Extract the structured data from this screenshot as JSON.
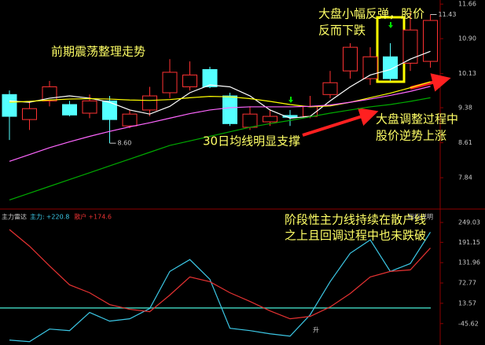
{
  "chart_data": [
    {
      "type": "candlestick",
      "open": [
        9.67,
        9.12,
        9.53,
        9.45,
        9.26,
        9.53,
        8.98,
        9.33,
        9.71,
        9.84,
        10.22,
        9.64,
        8.95,
        9.07,
        9.21,
        9.19,
        9.67,
        10.19,
        10.02,
        10.5,
        10.36,
        10.4
      ],
      "high": [
        9.76,
        9.53,
        9.97,
        9.53,
        9.67,
        9.64,
        9.33,
        9.84,
        10.45,
        10.4,
        10.28,
        9.71,
        9.41,
        9.33,
        9.33,
        9.64,
        10.19,
        10.8,
        10.71,
        10.8,
        11.49,
        11.43
      ],
      "low": [
        8.67,
        8.89,
        9.41,
        9.19,
        9.15,
        8.6,
        8.93,
        9.19,
        9.59,
        9.76,
        9.81,
        8.98,
        8.89,
        8.98,
        8.98,
        9.15,
        9.59,
        10.02,
        9.88,
        9.97,
        10.19,
        10.26
      ],
      "close": [
        9.19,
        9.36,
        9.84,
        9.22,
        9.53,
        9.12,
        9.24,
        9.64,
        10.16,
        10.1,
        9.84,
        9.03,
        9.24,
        9.19,
        9.17,
        9.41,
        9.93,
        10.71,
        10.5,
        10.02,
        11.09,
        11.3
      ],
      "low_labels": [
        null,
        null,
        null,
        null,
        null,
        "8.60",
        null,
        null,
        null,
        null,
        null,
        null,
        null,
        null,
        null,
        null,
        null,
        null,
        null,
        null,
        null,
        null
      ],
      "high_labels": [
        null,
        null,
        null,
        null,
        null,
        null,
        null,
        null,
        null,
        null,
        null,
        null,
        null,
        null,
        null,
        null,
        null,
        null,
        null,
        null,
        null,
        "11.43"
      ],
      "up_color": "#ff3232",
      "down_color": "#54ffff",
      "series": [
        {
          "color": "#ffffff",
          "values": [
            9.53,
            9.5,
            9.59,
            9.64,
            9.59,
            9.5,
            9.33,
            9.24,
            9.41,
            9.71,
            9.88,
            9.84,
            9.64,
            9.33,
            9.15,
            9.19,
            9.53,
            9.84,
            10.1,
            10.22,
            10.45,
            10.62
          ]
        },
        {
          "color": "#ffff00",
          "values": [
            9.5,
            9.52,
            9.55,
            9.57,
            9.58,
            9.57,
            9.55,
            9.54,
            9.56,
            9.6,
            9.63,
            9.62,
            9.58,
            9.52,
            9.45,
            9.4,
            9.42,
            9.5,
            9.6,
            9.7,
            9.82,
            9.95
          ]
        },
        {
          "color": "#ff66ff",
          "values": [
            8.2,
            8.35,
            8.5,
            8.63,
            8.75,
            8.86,
            8.96,
            9.05,
            9.15,
            9.25,
            9.33,
            9.38,
            9.4,
            9.4,
            9.4,
            9.41,
            9.44,
            9.5,
            9.57,
            9.65,
            9.74,
            9.85
          ]
        },
        {
          "color": "#00aa00",
          "values": [
            7.35,
            7.5,
            7.65,
            7.8,
            7.95,
            8.1,
            8.25,
            8.4,
            8.55,
            8.65,
            8.75,
            8.85,
            8.95,
            9.03,
            9.1,
            9.18,
            9.26,
            9.33,
            9.4,
            9.45,
            9.52,
            9.6
          ]
        }
      ],
      "ylim": [
        7.22,
        11.75
      ],
      "yticks": [
        11.66,
        {
          "value": 10.9,
          "label": "10.90"
        },
        10.13,
        9.38,
        8.61,
        7.84
      ],
      "annotations": [
        [
          "前期震荡整理走势"
        ],
        [
          "大盘小幅反弹，股价",
          "反而下跌"
        ],
        [
          "30日均线明显支撑"
        ],
        [
          "大盘调整过程中",
          "股价逆势上涨"
        ]
      ]
    },
    {
      "type": "line",
      "title": "主力雷达",
      "button": "指标说明",
      "series": [
        {
          "name": "主力:",
          "color": "#3cc8e6",
          "values": [
            -93.7,
            -98.3,
            -61.5,
            -66.1,
            -13.2,
            -38.5,
            -31.6,
            -1.7,
            106.4,
            140.9,
            83.4,
            -59.2,
            -66.1,
            -75.3,
            -82.2,
            -20.1,
            76.5,
            159.3,
            198.4,
            106.4,
            129.4,
            220.8
          ],
          "value_labels": [
            null,
            null,
            null,
            null,
            null,
            null,
            null,
            null,
            null,
            null,
            null,
            null,
            null,
            null,
            null,
            null,
            null,
            null,
            null,
            null,
            null,
            "+220.8"
          ]
        },
        {
          "name": "散户",
          "color": "#e63232",
          "values": [
            228.3,
            180.0,
            122.5,
            67.3,
            44.3,
            9.8,
            -4.0,
            -10.9,
            37.4,
            90.3,
            76.5,
            44.3,
            19.0,
            -8.6,
            -31.6,
            -24.7,
            2.9,
            42.0,
            90.3,
            106.4,
            111.0,
            174.6
          ],
          "value_labels": [
            null,
            null,
            null,
            null,
            null,
            null,
            null,
            null,
            null,
            null,
            null,
            null,
            null,
            null,
            null,
            null,
            null,
            null,
            null,
            null,
            null,
            "+174.6"
          ]
        }
      ],
      "level": 0,
      "level_color": "#3cc8b4",
      "ylim": [
        -108,
        279
      ],
      "yticks": [
        249.03,
        191.15,
        131.96,
        72.77,
        13.57,
        -45.62
      ],
      "annotations": [
        [
          "阶段性主力线持续在散户线",
          "之上且回调过程中也未跌破"
        ],
        [
          "升"
        ]
      ]
    }
  ]
}
